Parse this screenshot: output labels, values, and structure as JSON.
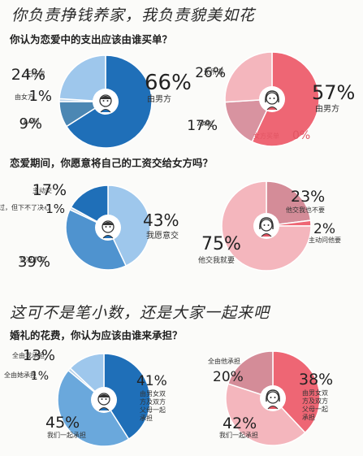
{
  "headings": {
    "h1": "你负责挣钱养家，我负责貌美如花",
    "q1": "你认为恋爱中的支出应该由谁买单？",
    "q2": "恋爱期间，你愿意将自己的工资交给女方吗？",
    "h2": "这可不是笔小数，还是大家一起来吧",
    "q3": "婚礼的花费，你认为应该由谁来承担？"
  },
  "chart_data": [
    {
      "id": "q1-male",
      "type": "pie",
      "slices": [
        {
          "label": "由男方",
          "value": 66,
          "color": "#1f6fb8"
        },
        {
          "label": "AA制",
          "value": 9,
          "color": "#4c87b3"
        },
        {
          "label": "由女方",
          "value": 1,
          "color": "#bcd3e8"
        },
        {
          "label": "无所谓",
          "value": 24,
          "color": "#9ec7ec"
        }
      ]
    },
    {
      "id": "q1-female",
      "type": "pie",
      "slices": [
        {
          "label": "由男方",
          "value": 57,
          "color": "#ee6674"
        },
        {
          "label": "女方买单",
          "value": 0,
          "color": "#ee6674"
        },
        {
          "label": "AA制",
          "value": 17,
          "color": "#d893a0"
        },
        {
          "label": "无所谓",
          "value": 26,
          "color": "#f4b6bd"
        }
      ]
    },
    {
      "id": "q2-male",
      "type": "pie",
      "slices": [
        {
          "label": "我愿意交",
          "value": 43,
          "color": "#9ec7ec"
        },
        {
          "label": "坚决不交",
          "value": 39,
          "color": "#4f93cf"
        },
        {
          "label": "想过，但下不了决心",
          "value": 1,
          "color": "#bcd3e8"
        },
        {
          "label": "主动交",
          "value": 17,
          "color": "#1f6fb8"
        }
      ]
    },
    {
      "id": "q2-female",
      "type": "pie",
      "slices": [
        {
          "label": "他交我也不要",
          "value": 23,
          "color": "#d48c98"
        },
        {
          "label": "主动问他要",
          "value": 2,
          "color": "#ee6674"
        },
        {
          "label": "他交我就要",
          "value": 75,
          "color": "#f4b6bd"
        }
      ]
    },
    {
      "id": "q3-male",
      "type": "pie",
      "slices": [
        {
          "label": "由男女双方及双方父母一起承担",
          "value": 41,
          "color": "#1f6fb8"
        },
        {
          "label": "我们一起承担",
          "value": 45,
          "color": "#6aa8dc"
        },
        {
          "label": "全由她承担",
          "value": 1,
          "color": "#bcd3e8"
        },
        {
          "label": "全由我承担",
          "value": 13,
          "color": "#9ec7ec"
        }
      ]
    },
    {
      "id": "q3-female",
      "type": "pie",
      "slices": [
        {
          "label": "由男女双方及双方父母一起承担",
          "value": 38,
          "color": "#ee6674"
        },
        {
          "label": "我们一起承担",
          "value": 42,
          "color": "#f4b6bd"
        },
        {
          "label": "全由他承担",
          "value": 20,
          "color": "#d48c98"
        }
      ]
    }
  ]
}
